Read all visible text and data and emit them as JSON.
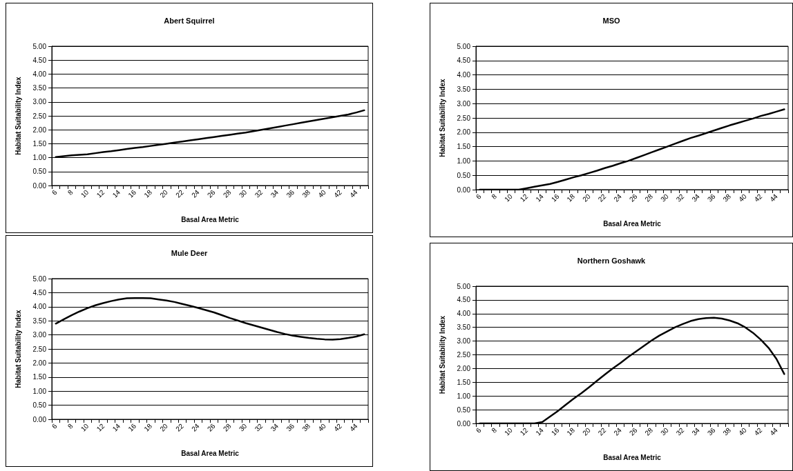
{
  "chart_data": [
    {
      "type": "line",
      "title": "Abert Squirrel",
      "xlabel": "Basal Area Metric",
      "ylabel": "Habitat Suitability Index",
      "categories": [
        "6",
        null,
        "8",
        null,
        "10",
        null,
        "12",
        null,
        "14",
        null,
        "16",
        null,
        "18",
        null,
        "20",
        null,
        "22",
        null,
        "24",
        null,
        "26",
        null,
        "28",
        null,
        "30",
        null,
        "32",
        null,
        "34",
        null,
        "36",
        null,
        "38",
        null,
        "40",
        null,
        "42",
        null,
        "44",
        null
      ],
      "series": [
        {
          "color": "#000000",
          "values": [
            1.02,
            1.05,
            1.08,
            1.1,
            1.12,
            1.16,
            1.2,
            1.23,
            1.27,
            1.31,
            1.35,
            1.38,
            1.42,
            1.46,
            1.5,
            1.54,
            1.58,
            1.62,
            1.66,
            1.7,
            1.74,
            1.78,
            1.82,
            1.86,
            1.9,
            1.95,
            2.0,
            2.05,
            2.1,
            2.15,
            2.2,
            2.25,
            2.3,
            2.35,
            2.4,
            2.45,
            2.5,
            2.55,
            2.62,
            2.7
          ]
        }
      ],
      "ylim": [
        0,
        5
      ],
      "yticks": [
        {
          "value": 0,
          "label": "0.00"
        },
        {
          "value": 0.5,
          "label": "0.50"
        },
        {
          "value": 1,
          "label": "1.00"
        },
        {
          "value": 1.5,
          "label": "1.50"
        },
        {
          "value": 2,
          "label": "2.00"
        },
        {
          "value": 2.5,
          "label": "2.50"
        },
        {
          "value": 3,
          "label": "3.00"
        },
        {
          "value": 3.5,
          "label": "3.50"
        },
        {
          "value": 4,
          "label": "4.00"
        },
        {
          "value": 4.5,
          "label": "4.50"
        },
        {
          "value": 5,
          "label": "5.00"
        }
      ],
      "grid": "y",
      "marker": "none",
      "line_style": "solid"
    },
    {
      "type": "line",
      "title": "MSO",
      "xlabel": "Basal Area Metric",
      "ylabel": "Habitat Suitability Index",
      "categories": [
        "6",
        null,
        "8",
        null,
        "10",
        null,
        "12",
        null,
        "14",
        null,
        "16",
        null,
        "18",
        null,
        "20",
        null,
        "22",
        null,
        "24",
        null,
        "26",
        null,
        "28",
        null,
        "30",
        null,
        "32",
        null,
        "34",
        null,
        "36",
        null,
        "38",
        null,
        "40",
        null,
        "42",
        null,
        "44",
        null
      ],
      "series": [
        {
          "color": "#000000",
          "values": [
            0,
            0,
            0,
            0,
            0,
            0,
            0.05,
            0.1,
            0.15,
            0.2,
            0.27,
            0.35,
            0.43,
            0.5,
            0.58,
            0.66,
            0.75,
            0.83,
            0.92,
            1.0,
            1.1,
            1.2,
            1.3,
            1.4,
            1.5,
            1.6,
            1.7,
            1.8,
            1.88,
            1.97,
            2.06,
            2.15,
            2.24,
            2.32,
            2.4,
            2.48,
            2.57,
            2.64,
            2.72,
            2.8
          ]
        }
      ],
      "ylim": [
        0,
        5
      ],
      "yticks": [
        {
          "value": 0,
          "label": "0.00"
        },
        {
          "value": 0.5,
          "label": "0.50"
        },
        {
          "value": 1,
          "label": "1.00"
        },
        {
          "value": 1.5,
          "label": "1.50"
        },
        {
          "value": 2,
          "label": "2.00"
        },
        {
          "value": 2.5,
          "label": "2.50"
        },
        {
          "value": 3,
          "label": "3.00"
        },
        {
          "value": 3.5,
          "label": "3.50"
        },
        {
          "value": 4,
          "label": "4.00"
        },
        {
          "value": 4.5,
          "label": "4.50"
        },
        {
          "value": 5,
          "label": "5.00"
        }
      ],
      "grid": "y",
      "marker": "none",
      "line_style": "solid"
    },
    {
      "type": "line",
      "title": "Mule Deer",
      "xlabel": "Basal Area Metric",
      "ylabel": "Habitat Suitability Index",
      "categories": [
        "6",
        null,
        "8",
        null,
        "10",
        null,
        "12",
        null,
        "14",
        null,
        "16",
        null,
        "18",
        null,
        "20",
        null,
        "22",
        null,
        "24",
        null,
        "26",
        null,
        "28",
        null,
        "30",
        null,
        "32",
        null,
        "34",
        null,
        "36",
        null,
        "38",
        null,
        "40",
        null,
        "42",
        null,
        "44",
        null
      ],
      "series": [
        {
          "color": "#000000",
          "values": [
            3.4,
            3.55,
            3.7,
            3.83,
            3.95,
            4.05,
            4.13,
            4.2,
            4.26,
            4.3,
            4.31,
            4.31,
            4.3,
            4.26,
            4.22,
            4.17,
            4.1,
            4.03,
            3.96,
            3.88,
            3.8,
            3.7,
            3.6,
            3.51,
            3.42,
            3.34,
            3.26,
            3.18,
            3.1,
            3.03,
            2.97,
            2.93,
            2.89,
            2.86,
            2.84,
            2.83,
            2.85,
            2.89,
            2.94,
            3.02
          ]
        }
      ],
      "ylim": [
        0,
        5
      ],
      "yticks": [
        {
          "value": 0,
          "label": "0.00"
        },
        {
          "value": 0.5,
          "label": "0.50"
        },
        {
          "value": 1,
          "label": "1.00"
        },
        {
          "value": 1.5,
          "label": "1.50"
        },
        {
          "value": 2,
          "label": "2.00"
        },
        {
          "value": 2.5,
          "label": "2.50"
        },
        {
          "value": 3,
          "label": "3.00"
        },
        {
          "value": 3.5,
          "label": "3.50"
        },
        {
          "value": 4,
          "label": "4.00"
        },
        {
          "value": 4.5,
          "label": "4.50"
        },
        {
          "value": 5,
          "label": "5.00"
        }
      ],
      "grid": "y",
      "marker": "none",
      "line_style": "solid"
    },
    {
      "type": "line",
      "title": "Northern Goshawk",
      "xlabel": "Basal Area Metric",
      "ylabel": "Habitat Suitability Index",
      "categories": [
        "6",
        null,
        "8",
        null,
        "10",
        null,
        "12",
        null,
        "14",
        null,
        "16",
        null,
        "18",
        null,
        "20",
        null,
        "22",
        null,
        "24",
        null,
        "26",
        null,
        "28",
        null,
        "30",
        null,
        "32",
        null,
        "34",
        null,
        "36",
        null,
        "38",
        null,
        "40",
        null,
        "42",
        null,
        "44",
        null
      ],
      "series": [
        {
          "color": "#000000",
          "values": [
            0,
            0,
            0,
            0,
            0,
            0,
            0,
            0,
            0.05,
            0.25,
            0.45,
            0.68,
            0.9,
            1.1,
            1.32,
            1.55,
            1.78,
            2.0,
            2.2,
            2.42,
            2.62,
            2.82,
            3.02,
            3.2,
            3.35,
            3.5,
            3.62,
            3.73,
            3.8,
            3.84,
            3.85,
            3.82,
            3.75,
            3.65,
            3.5,
            3.3,
            3.05,
            2.75,
            2.35,
            1.8
          ]
        }
      ],
      "ylim": [
        0,
        5
      ],
      "yticks": [
        {
          "value": 0,
          "label": "0.00"
        },
        {
          "value": 0.5,
          "label": "0.50"
        },
        {
          "value": 1,
          "label": "1.00"
        },
        {
          "value": 1.5,
          "label": "1.50"
        },
        {
          "value": 2,
          "label": "2.00"
        },
        {
          "value": 2.5,
          "label": "2.50"
        },
        {
          "value": 3,
          "label": "3.00"
        },
        {
          "value": 3.5,
          "label": "3.50"
        },
        {
          "value": 4,
          "label": "4.00"
        },
        {
          "value": 4.5,
          "label": "4.50"
        },
        {
          "value": 5,
          "label": "5.00"
        }
      ],
      "grid": "y",
      "marker": "none",
      "line_style": "solid"
    }
  ]
}
